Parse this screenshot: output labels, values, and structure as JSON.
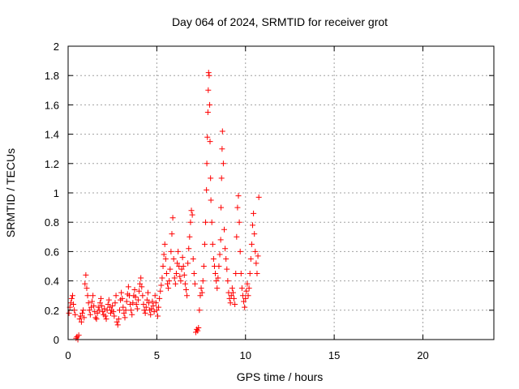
{
  "chart_data": {
    "type": "scatter",
    "title": "Day 064 of 2024, SRMTID for receiver grot",
    "xlabel": "GPS time / hours",
    "ylabel": "SRMTID / TECUs",
    "xlim": [
      0,
      24
    ],
    "ylim": [
      0,
      2
    ],
    "xticks": [
      0,
      5,
      10,
      15,
      20
    ],
    "yticks": [
      0,
      0.2,
      0.4,
      0.6,
      0.8,
      1,
      1.2,
      1.4,
      1.6,
      1.8,
      2
    ],
    "ytick_labels": [
      "0",
      "0.2",
      "0.4",
      "0.6",
      "0.8",
      "1",
      "1.2",
      "1.4",
      "1.6",
      "1.8",
      "2"
    ],
    "grid": true,
    "marker": "+",
    "color": "#ff0000",
    "series": [
      {
        "name": "SRMTID",
        "points": [
          [
            0.05,
            0.18
          ],
          [
            0.1,
            0.22
          ],
          [
            0.15,
            0.25
          ],
          [
            0.2,
            0.28
          ],
          [
            0.25,
            0.3
          ],
          [
            0.3,
            0.24
          ],
          [
            0.35,
            0.2
          ],
          [
            0.4,
            0.17
          ],
          [
            0.45,
            0.01
          ],
          [
            0.5,
            0.02
          ],
          [
            0.55,
            0.0
          ],
          [
            0.6,
            0.03
          ],
          [
            0.65,
            0.14
          ],
          [
            0.7,
            0.16
          ],
          [
            0.75,
            0.12
          ],
          [
            0.8,
            0.18
          ],
          [
            0.85,
            0.2
          ],
          [
            0.9,
            0.15
          ],
          [
            0.95,
            0.38
          ],
          [
            1.0,
            0.44
          ],
          [
            1.05,
            0.35
          ],
          [
            1.1,
            0.3
          ],
          [
            1.15,
            0.25
          ],
          [
            1.2,
            0.2
          ],
          [
            1.25,
            0.17
          ],
          [
            1.3,
            0.22
          ],
          [
            1.35,
            0.26
          ],
          [
            1.4,
            0.3
          ],
          [
            1.45,
            0.23
          ],
          [
            1.5,
            0.19
          ],
          [
            1.55,
            0.15
          ],
          [
            1.6,
            0.14
          ],
          [
            1.65,
            0.18
          ],
          [
            1.7,
            0.22
          ],
          [
            1.75,
            0.2
          ],
          [
            1.8,
            0.25
          ],
          [
            1.85,
            0.28
          ],
          [
            1.9,
            0.23
          ],
          [
            1.95,
            0.19
          ],
          [
            2.0,
            0.17
          ],
          [
            2.05,
            0.21
          ],
          [
            2.1,
            0.16
          ],
          [
            2.15,
            0.14
          ],
          [
            2.2,
            0.2
          ],
          [
            2.25,
            0.24
          ],
          [
            2.3,
            0.27
          ],
          [
            2.35,
            0.22
          ],
          [
            2.4,
            0.18
          ],
          [
            2.45,
            0.2
          ],
          [
            2.5,
            0.23
          ],
          [
            2.55,
            0.19
          ],
          [
            2.6,
            0.16
          ],
          [
            2.65,
            0.25
          ],
          [
            2.7,
            0.3
          ],
          [
            2.75,
            0.12
          ],
          [
            2.8,
            0.1
          ],
          [
            2.85,
            0.14
          ],
          [
            2.9,
            0.2
          ],
          [
            2.95,
            0.27
          ],
          [
            3.0,
            0.32
          ],
          [
            3.05,
            0.28
          ],
          [
            3.1,
            0.22
          ],
          [
            3.15,
            0.18
          ],
          [
            3.2,
            0.15
          ],
          [
            3.25,
            0.2
          ],
          [
            3.3,
            0.26
          ],
          [
            3.35,
            0.31
          ],
          [
            3.4,
            0.36
          ],
          [
            3.45,
            0.3
          ],
          [
            3.5,
            0.24
          ],
          [
            3.55,
            0.2
          ],
          [
            3.6,
            0.17
          ],
          [
            3.65,
            0.25
          ],
          [
            3.7,
            0.3
          ],
          [
            3.75,
            0.34
          ],
          [
            3.8,
            0.29
          ],
          [
            3.85,
            0.24
          ],
          [
            3.9,
            0.21
          ],
          [
            3.95,
            0.27
          ],
          [
            4.0,
            0.33
          ],
          [
            4.05,
            0.38
          ],
          [
            4.1,
            0.42
          ],
          [
            4.15,
            0.36
          ],
          [
            4.2,
            0.3
          ],
          [
            4.25,
            0.24
          ],
          [
            4.3,
            0.2
          ],
          [
            4.35,
            0.18
          ],
          [
            4.4,
            0.22
          ],
          [
            4.45,
            0.27
          ],
          [
            4.5,
            0.32
          ],
          [
            4.55,
            0.25
          ],
          [
            4.6,
            0.2
          ],
          [
            4.65,
            0.17
          ],
          [
            4.7,
            0.21
          ],
          [
            4.75,
            0.26
          ],
          [
            4.8,
            0.23
          ],
          [
            4.85,
            0.19
          ],
          [
            4.9,
            0.3
          ],
          [
            4.95,
            0.25
          ],
          [
            5.0,
            0.2
          ],
          [
            5.05,
            0.16
          ],
          [
            5.1,
            0.22
          ],
          [
            5.15,
            0.28
          ],
          [
            5.2,
            0.33
          ],
          [
            5.25,
            0.37
          ],
          [
            5.3,
            0.42
          ],
          [
            5.35,
            0.5
          ],
          [
            5.4,
            0.58
          ],
          [
            5.45,
            0.65
          ],
          [
            5.5,
            0.55
          ],
          [
            5.55,
            0.45
          ],
          [
            5.6,
            0.38
          ],
          [
            5.65,
            0.35
          ],
          [
            5.7,
            0.4
          ],
          [
            5.75,
            0.48
          ],
          [
            5.8,
            0.6
          ],
          [
            5.85,
            0.72
          ],
          [
            5.9,
            0.83
          ],
          [
            5.95,
            0.55
          ],
          [
            6.0,
            0.42
          ],
          [
            6.05,
            0.38
          ],
          [
            6.1,
            0.45
          ],
          [
            6.15,
            0.52
          ],
          [
            6.2,
            0.6
          ],
          [
            6.25,
            0.5
          ],
          [
            6.3,
            0.43
          ],
          [
            6.35,
            0.4
          ],
          [
            6.4,
            0.48
          ],
          [
            6.45,
            0.56
          ],
          [
            6.5,
            0.5
          ],
          [
            6.55,
            0.44
          ],
          [
            6.6,
            0.38
          ],
          [
            6.65,
            0.34
          ],
          [
            6.7,
            0.3
          ],
          [
            6.75,
            0.52
          ],
          [
            6.8,
            0.62
          ],
          [
            6.85,
            0.7
          ],
          [
            6.9,
            0.8
          ],
          [
            6.95,
            0.88
          ],
          [
            7.0,
            0.85
          ],
          [
            7.05,
            0.55
          ],
          [
            7.1,
            0.45
          ],
          [
            7.15,
            0.38
          ],
          [
            7.2,
            0.05
          ],
          [
            7.25,
            0.07
          ],
          [
            7.3,
            0.06
          ],
          [
            7.35,
            0.08
          ],
          [
            7.4,
            0.2
          ],
          [
            7.45,
            0.3
          ],
          [
            7.5,
            0.35
          ],
          [
            7.55,
            0.32
          ],
          [
            7.6,
            0.4
          ],
          [
            7.65,
            0.5
          ],
          [
            7.7,
            0.65
          ],
          [
            7.75,
            0.8
          ],
          [
            7.8,
            1.02
          ],
          [
            7.82,
            1.2
          ],
          [
            7.85,
            1.38
          ],
          [
            7.88,
            1.55
          ],
          [
            7.9,
            1.7
          ],
          [
            7.92,
            1.82
          ],
          [
            7.95,
            1.8
          ],
          [
            7.98,
            1.6
          ],
          [
            8.0,
            1.35
          ],
          [
            8.03,
            1.1
          ],
          [
            8.05,
            0.95
          ],
          [
            8.1,
            0.8
          ],
          [
            8.15,
            0.65
          ],
          [
            8.2,
            0.55
          ],
          [
            8.25,
            0.5
          ],
          [
            8.3,
            0.45
          ],
          [
            8.35,
            0.4
          ],
          [
            8.4,
            0.35
          ],
          [
            8.45,
            0.42
          ],
          [
            8.5,
            0.5
          ],
          [
            8.55,
            0.58
          ],
          [
            8.6,
            0.68
          ],
          [
            8.62,
            0.9
          ],
          [
            8.65,
            1.1
          ],
          [
            8.68,
            1.3
          ],
          [
            8.7,
            1.42
          ],
          [
            8.75,
            1.2
          ],
          [
            8.8,
            0.75
          ],
          [
            8.85,
            0.62
          ],
          [
            8.9,
            0.55
          ],
          [
            8.95,
            0.48
          ],
          [
            9.0,
            0.4
          ],
          [
            9.05,
            0.32
          ],
          [
            9.1,
            0.28
          ],
          [
            9.15,
            0.25
          ],
          [
            9.2,
            0.3
          ],
          [
            9.25,
            0.35
          ],
          [
            9.3,
            0.32
          ],
          [
            9.35,
            0.28
          ],
          [
            9.4,
            0.24
          ],
          [
            9.45,
            0.45
          ],
          [
            9.5,
            0.7
          ],
          [
            9.55,
            0.9
          ],
          [
            9.6,
            0.98
          ],
          [
            9.65,
            0.8
          ],
          [
            9.7,
            0.6
          ],
          [
            9.75,
            0.45
          ],
          [
            9.8,
            0.35
          ],
          [
            9.85,
            0.3
          ],
          [
            9.9,
            0.26
          ],
          [
            9.95,
            0.22
          ],
          [
            10.0,
            0.28
          ],
          [
            10.05,
            0.33
          ],
          [
            10.1,
            0.38
          ],
          [
            10.15,
            0.3
          ],
          [
            10.2,
            0.35
          ],
          [
            10.25,
            0.45
          ],
          [
            10.3,
            0.55
          ],
          [
            10.35,
            0.65
          ],
          [
            10.4,
            0.78
          ],
          [
            10.45,
            0.86
          ],
          [
            10.5,
            0.72
          ],
          [
            10.55,
            0.6
          ],
          [
            10.6,
            0.52
          ],
          [
            10.65,
            0.45
          ],
          [
            10.7,
            0.57
          ],
          [
            10.75,
            0.97
          ]
        ]
      }
    ]
  }
}
